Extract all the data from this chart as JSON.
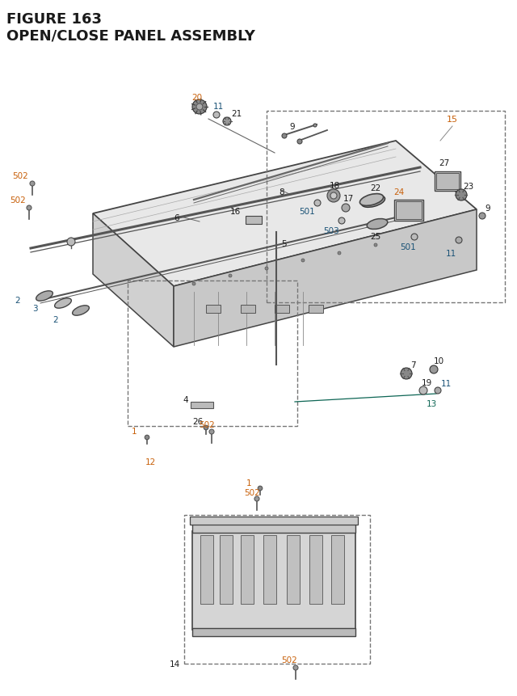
{
  "title_line1": "FIGURE 163",
  "title_line2": "OPEN/CLOSE PANEL ASSEMBLY",
  "bg_color": "#ffffff",
  "label_color_orange": "#c8600a",
  "label_color_blue": "#1a5276",
  "label_color_black": "#1a1a1a",
  "label_color_teal": "#0e6655"
}
